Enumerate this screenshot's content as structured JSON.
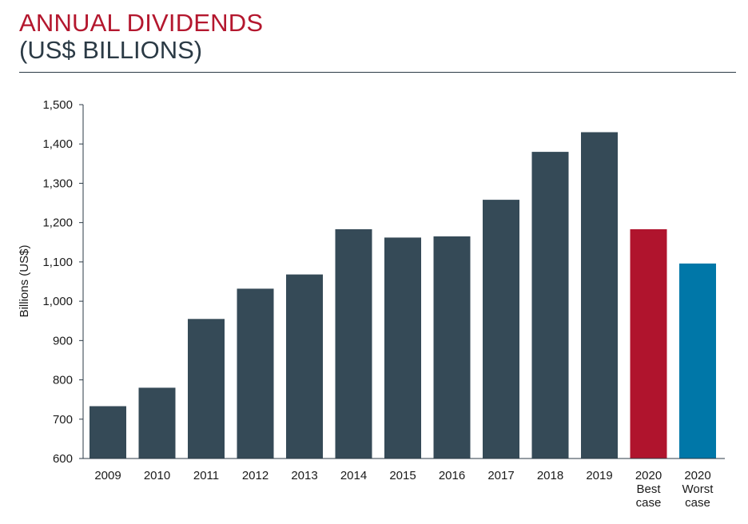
{
  "header": {
    "title": "ANNUAL DIVIDENDS",
    "subtitle": "(US$ BILLIONS)"
  },
  "colors": {
    "title": "#b4172e",
    "bar_default": "#354a57",
    "bar_best": "#b0142d",
    "bar_worst": "#0077a8",
    "axis": "#2b3a45"
  },
  "chart_data": {
    "type": "bar",
    "categories": [
      "2009",
      "2010",
      "2011",
      "2012",
      "2013",
      "2014",
      "2015",
      "2016",
      "2017",
      "2018",
      "2019",
      "2020 Best case",
      "2020 Worst case"
    ],
    "category_labels": [
      [
        "2009"
      ],
      [
        "2010"
      ],
      [
        "2011"
      ],
      [
        "2012"
      ],
      [
        "2013"
      ],
      [
        "2014"
      ],
      [
        "2015"
      ],
      [
        "2016"
      ],
      [
        "2017"
      ],
      [
        "2018"
      ],
      [
        "2019"
      ],
      [
        "2020",
        "Best",
        "case"
      ],
      [
        "2020",
        "Worst",
        "case"
      ]
    ],
    "values": [
      733,
      780,
      955,
      1032,
      1068,
      1183,
      1162,
      1165,
      1258,
      1380,
      1430,
      1183,
      1096
    ],
    "bar_colors": [
      "#354a57",
      "#354a57",
      "#354a57",
      "#354a57",
      "#354a57",
      "#354a57",
      "#354a57",
      "#354a57",
      "#354a57",
      "#354a57",
      "#354a57",
      "#b0142d",
      "#0077a8"
    ],
    "ylabel": "Billions (US$)",
    "xlabel": "",
    "ylim": [
      600,
      1500
    ],
    "yticks": [
      600,
      700,
      800,
      900,
      1000,
      1100,
      1200,
      1300,
      1400,
      1500
    ],
    "ytick_labels": [
      "600",
      "700",
      "800",
      "900",
      "1,000",
      "1,100",
      "1,200",
      "1,300",
      "1,400",
      "1,500"
    ],
    "grid": false,
    "legend": "none"
  }
}
